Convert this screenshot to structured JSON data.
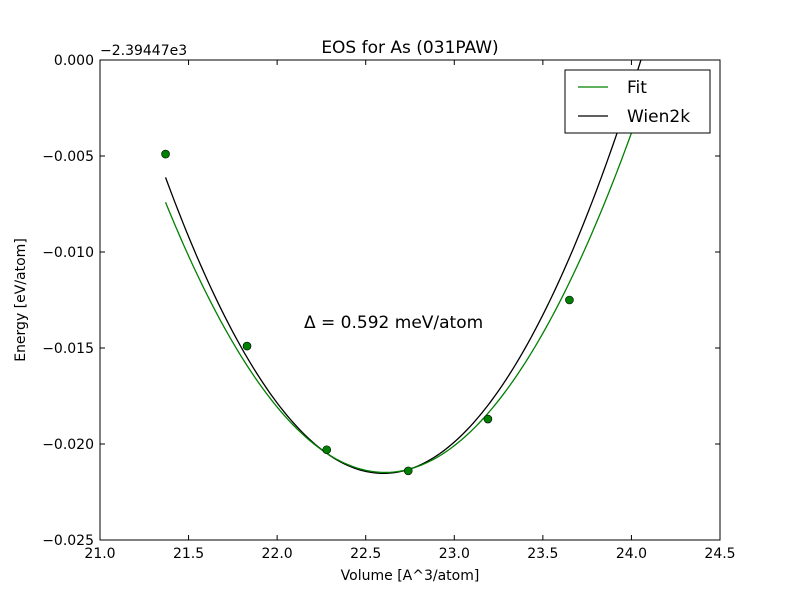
{
  "chart_data": {
    "type": "line",
    "title": "EOS for As (031PAW)",
    "xlabel": "Volume [A^3/atom]",
    "ylabel": "Energy [eV/atom]",
    "offset_text": "−2.39447e3",
    "annotation": "Δ = 0.592 meV/atom",
    "xlim": [
      21.0,
      24.5
    ],
    "ylim": [
      -0.025,
      0.0
    ],
    "xticks": [
      21.0,
      21.5,
      22.0,
      22.5,
      23.0,
      23.5,
      24.0,
      24.5
    ],
    "xtick_labels": [
      "21.0",
      "21.5",
      "22.0",
      "22.5",
      "23.0",
      "23.5",
      "24.0",
      "24.5"
    ],
    "yticks": [
      0.0,
      -0.005,
      -0.01,
      -0.015,
      -0.02,
      -0.025
    ],
    "ytick_labels": [
      "0.000",
      "−0.005",
      "−0.010",
      "−0.015",
      "−0.020",
      "−0.025"
    ],
    "grid": false,
    "legend_position": "top-right",
    "series": [
      {
        "name": "Fit",
        "kind": "line",
        "color": "#008000",
        "fit": {
          "a": 0.00915,
          "x0": 22.61,
          "y0": -0.02148,
          "x_start": 21.37,
          "x_end": 24.12
        }
      },
      {
        "name": "Wien2k",
        "kind": "line",
        "color": "#000000",
        "fit": {
          "a": 0.01019,
          "x0": 22.6,
          "y0": -0.02153,
          "x_start": 21.37,
          "x_end": 24.12
        }
      },
      {
        "name": "Data points",
        "kind": "scatter",
        "color": "#008000",
        "points": [
          {
            "x": 21.37,
            "y": -0.0049
          },
          {
            "x": 21.83,
            "y": -0.0149
          },
          {
            "x": 22.28,
            "y": -0.0203
          },
          {
            "x": 22.74,
            "y": -0.0214
          },
          {
            "x": 23.19,
            "y": -0.0187
          },
          {
            "x": 23.65,
            "y": -0.0125
          }
        ]
      }
    ]
  }
}
